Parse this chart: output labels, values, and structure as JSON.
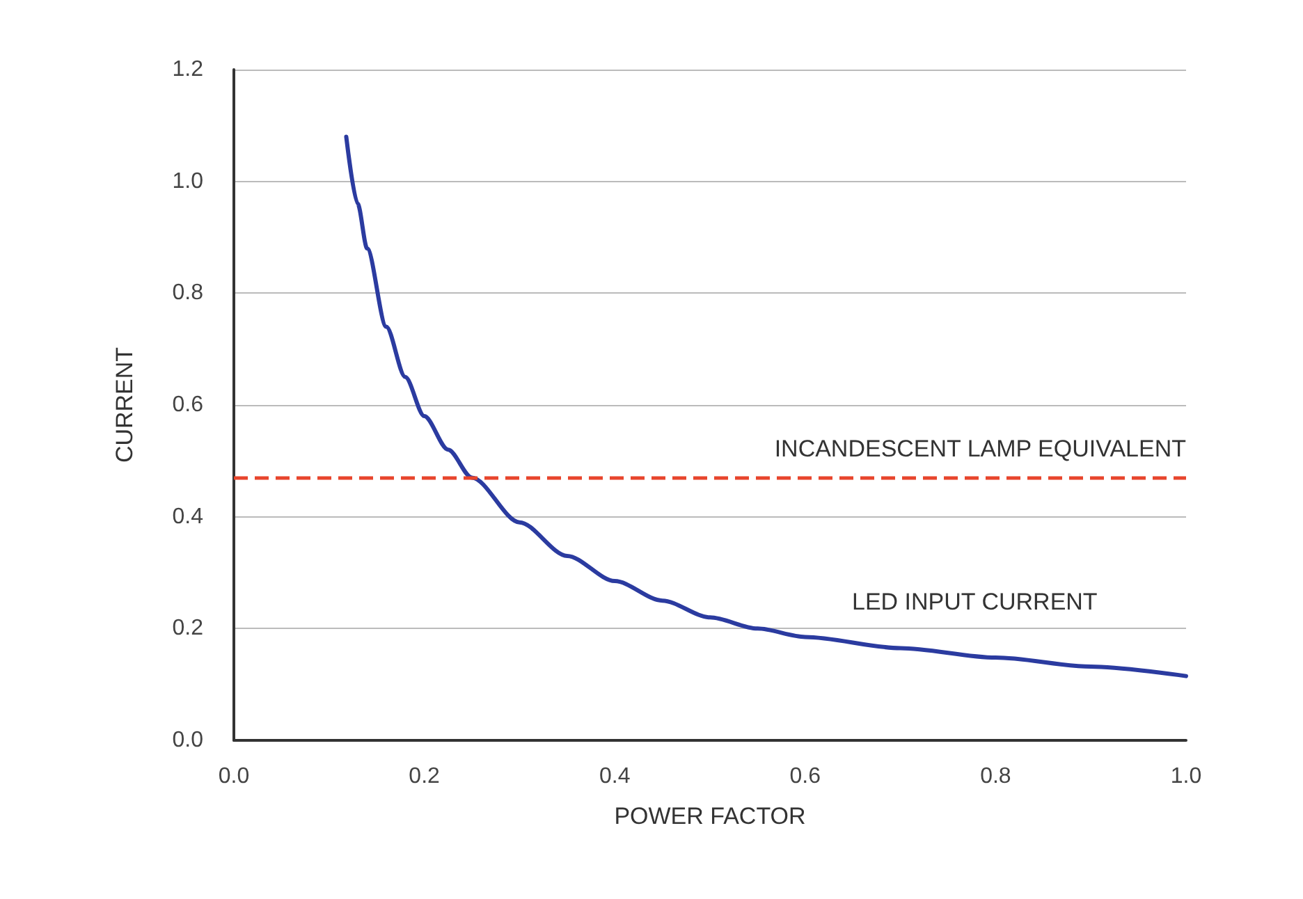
{
  "chart_data": {
    "type": "line",
    "xlabel": "POWER FACTOR",
    "ylabel": "CURRENT",
    "x": [
      0.118,
      0.13,
      0.14,
      0.16,
      0.18,
      0.2,
      0.225,
      0.25,
      0.3,
      0.35,
      0.4,
      0.45,
      0.5,
      0.55,
      0.6,
      0.7,
      0.8,
      0.9,
      1.0
    ],
    "series": [
      {
        "name": "LED INPUT CURRENT",
        "color": "#2b3ba0",
        "values": [
          1.08,
          0.96,
          0.88,
          0.74,
          0.65,
          0.58,
          0.52,
          0.47,
          0.39,
          0.33,
          0.285,
          0.25,
          0.22,
          0.2,
          0.185,
          0.165,
          0.148,
          0.132,
          0.115
        ]
      }
    ],
    "xlim": [
      0,
      1
    ],
    "xticks": [
      "0.0",
      0.2,
      0.4,
      0.6,
      0.8,
      "1.0"
    ],
    "ylim": [
      0,
      1.2
    ],
    "yticks": [
      "0.0",
      0.2,
      0.4,
      0.6,
      0.8,
      "1.0",
      1.2
    ],
    "ref_lines": [
      {
        "axis": "y",
        "value": 0.465,
        "label": "INCANDESCENT LAMP EQUIVALENT",
        "color": "#e8452c",
        "line_style": "dashed"
      }
    ],
    "grid": "y",
    "marker": "none",
    "line_style": "solid"
  }
}
